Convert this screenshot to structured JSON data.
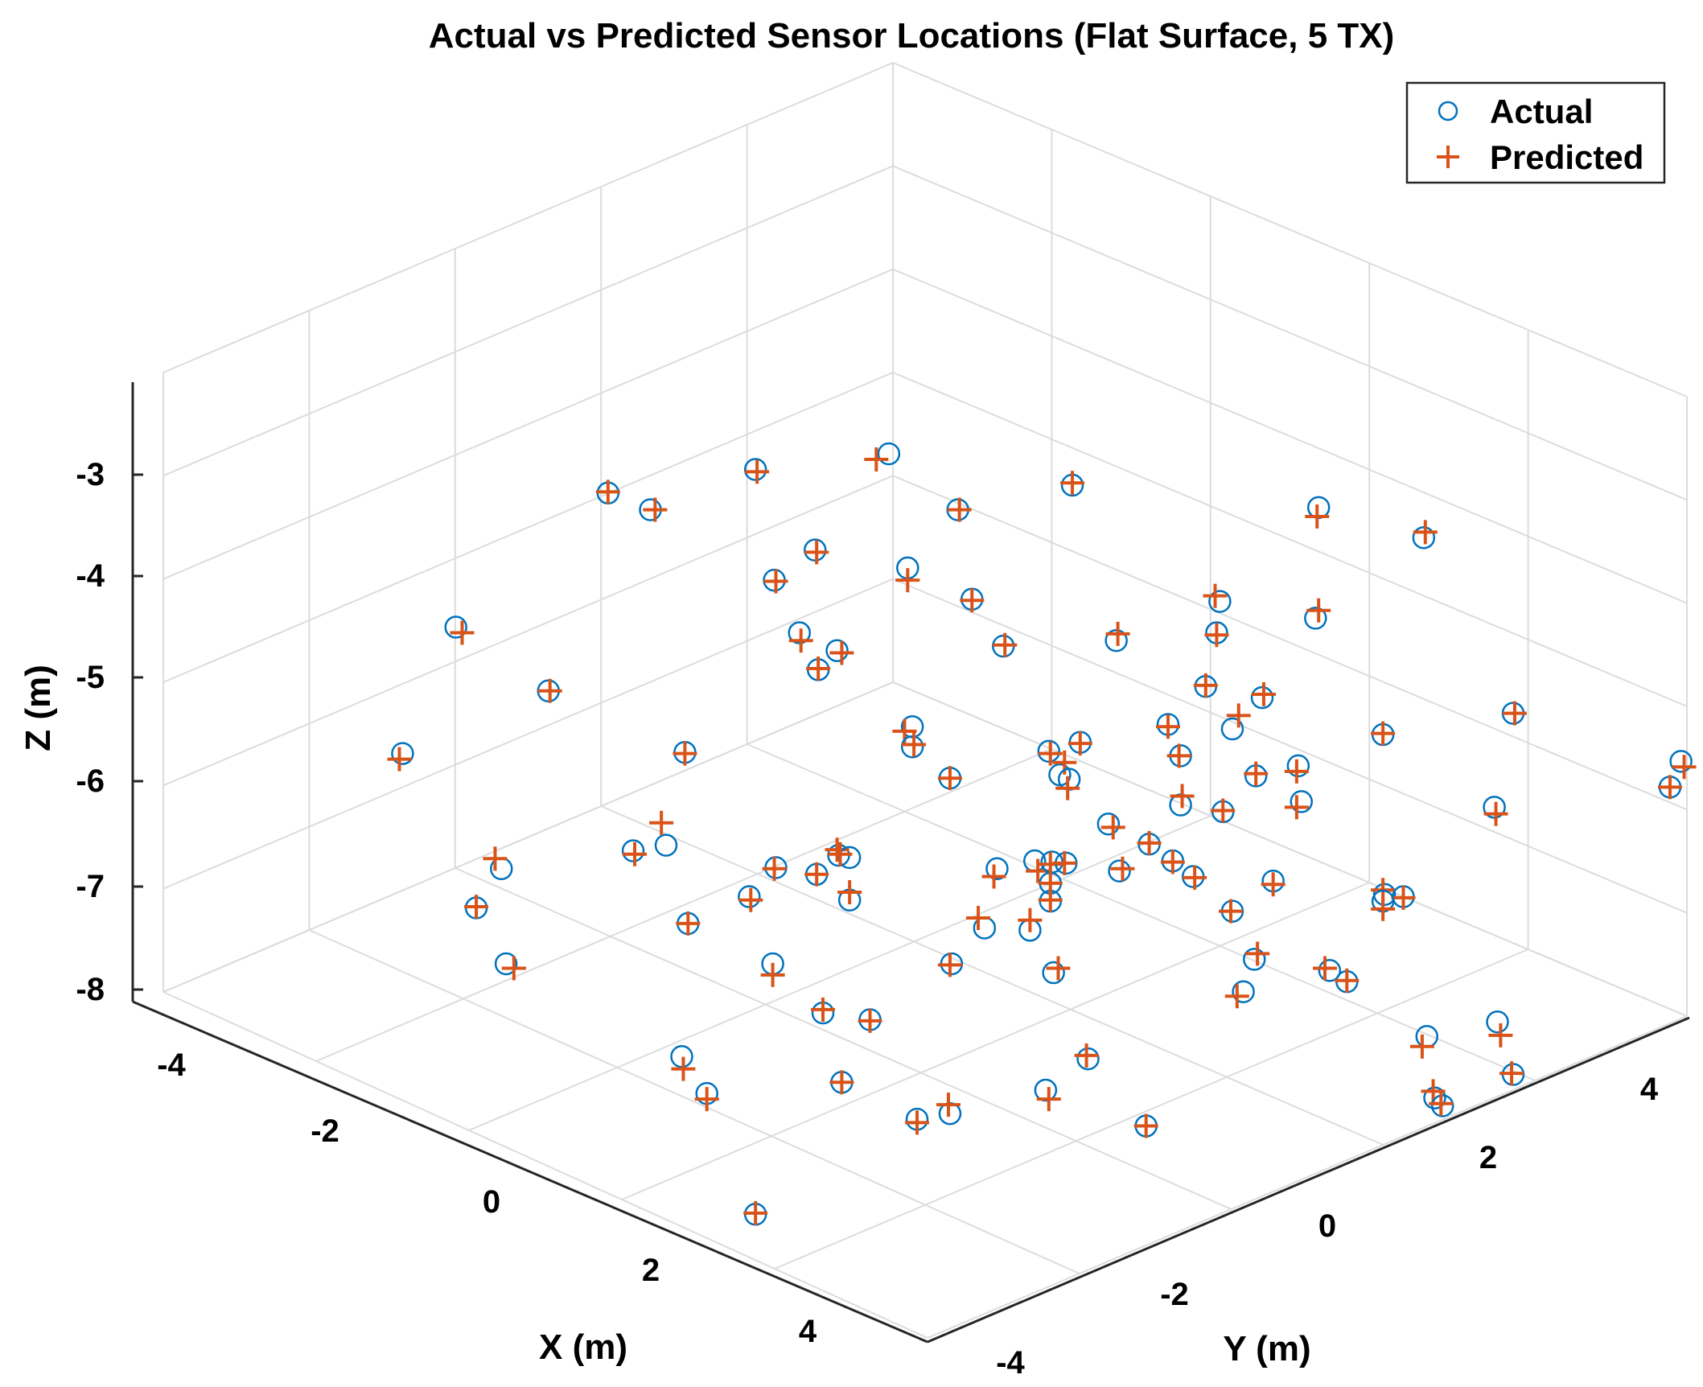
{
  "chart_data": {
    "type": "scatter",
    "title": "Actual vs Predicted Sensor Locations (Flat Surface, 5 TX)",
    "xlabel": "X (m)",
    "ylabel": "Y (m)",
    "zlabel": "Z (m)",
    "x_ticks": [
      "-4",
      "-2",
      "0",
      "2",
      "4"
    ],
    "y_ticks": [
      "-4",
      "-2",
      "0",
      "2",
      "4"
    ],
    "z_ticks": [
      "-3",
      "-4",
      "-5",
      "-6",
      "-7",
      "-8"
    ],
    "xlim": [
      -5,
      5
    ],
    "ylim": [
      -5,
      5
    ],
    "zlim": [
      -8,
      -2
    ],
    "grid": true,
    "legend_position": "top-right",
    "series": [
      {
        "name": "Actual",
        "marker": "circle",
        "color": "#0072BD"
      },
      {
        "name": "Predicted",
        "marker": "plus",
        "color": "#D95319"
      }
    ],
    "points_note": "positions given as projected plot-area values (u: 0-1 across, v: 0-1 down) for Actual (a) and Predicted (p)",
    "points": [
      {
        "a": [
          0.482,
          0.19
        ],
        "p": [
          0.474,
          0.195
        ]
      },
      {
        "a": [
          0.397,
          0.204
        ],
        "p": [
          0.398,
          0.206
        ]
      },
      {
        "a": [
          0.303,
          0.225
        ],
        "p": [
          0.303,
          0.224
        ]
      },
      {
        "a": [
          0.33,
          0.24
        ],
        "p": [
          0.333,
          0.24
        ]
      },
      {
        "a": [
          0.526,
          0.24
        ],
        "p": [
          0.527,
          0.24
        ]
      },
      {
        "a": [
          0.599,
          0.218
        ],
        "p": [
          0.599,
          0.216
        ]
      },
      {
        "a": [
          0.756,
          0.238
        ],
        "p": [
          0.755,
          0.246
        ]
      },
      {
        "a": [
          0.823,
          0.265
        ],
        "p": [
          0.824,
          0.26
        ]
      },
      {
        "a": [
          0.435,
          0.276
        ],
        "p": [
          0.436,
          0.278
        ]
      },
      {
        "a": [
          0.409,
          0.303
        ],
        "p": [
          0.41,
          0.304
        ]
      },
      {
        "a": [
          0.494,
          0.292
        ],
        "p": [
          0.494,
          0.303
        ]
      },
      {
        "a": [
          0.535,
          0.32
        ],
        "p": [
          0.535,
          0.321
        ]
      },
      {
        "a": [
          0.206,
          0.345
        ],
        "p": [
          0.21,
          0.35
        ]
      },
      {
        "a": [
          0.425,
          0.35
        ],
        "p": [
          0.426,
          0.357
        ]
      },
      {
        "a": [
          0.449,
          0.366
        ],
        "p": [
          0.452,
          0.368
        ]
      },
      {
        "a": [
          0.437,
          0.383
        ],
        "p": [
          0.437,
          0.382
        ]
      },
      {
        "a": [
          0.555,
          0.362
        ],
        "p": [
          0.556,
          0.361
        ]
      },
      {
        "a": [
          0.627,
          0.357
        ],
        "p": [
          0.628,
          0.351
        ]
      },
      {
        "a": [
          0.693,
          0.322
        ],
        "p": [
          0.69,
          0.317
        ]
      },
      {
        "a": [
          0.691,
          0.35
        ],
        "p": [
          0.691,
          0.352
        ]
      },
      {
        "a": [
          0.754,
          0.337
        ],
        "p": [
          0.756,
          0.33
        ]
      },
      {
        "a": [
          0.265,
          0.402
        ],
        "p": [
          0.266,
          0.402
        ]
      },
      {
        "a": [
          0.684,
          0.398
        ],
        "p": [
          0.684,
          0.397
        ]
      },
      {
        "a": [
          0.72,
          0.408
        ],
        "p": [
          0.721,
          0.405
        ]
      },
      {
        "a": [
          0.88,
          0.422
        ],
        "p": [
          0.881,
          0.422
        ]
      },
      {
        "a": [
          0.172,
          0.458
        ],
        "p": [
          0.17,
          0.463
        ]
      },
      {
        "a": [
          0.352,
          0.457
        ],
        "p": [
          0.352,
          0.458
        ]
      },
      {
        "a": [
          0.497,
          0.434
        ],
        "p": [
          0.492,
          0.438
        ]
      },
      {
        "a": [
          0.497,
          0.452
        ],
        "p": [
          0.498,
          0.45
        ]
      },
      {
        "a": [
          0.521,
          0.48
        ],
        "p": [
          0.521,
          0.48
        ]
      },
      {
        "a": [
          0.584,
          0.456
        ],
        "p": [
          0.585,
          0.458
        ]
      },
      {
        "a": [
          0.604,
          0.448
        ],
        "p": [
          0.604,
          0.449
        ]
      },
      {
        "a": [
          0.66,
          0.432
        ],
        "p": [
          0.66,
          0.434
        ]
      },
      {
        "a": [
          0.701,
          0.436
        ],
        "p": [
          0.705,
          0.424
        ]
      },
      {
        "a": [
          0.797,
          0.441
        ],
        "p": [
          0.797,
          0.44
        ]
      },
      {
        "a": [
          0.668,
          0.46
        ],
        "p": [
          0.667,
          0.46
        ]
      },
      {
        "a": [
          0.716,
          0.478
        ],
        "p": [
          0.716,
          0.476
        ]
      },
      {
        "a": [
          0.743,
          0.469
        ],
        "p": [
          0.742,
          0.474
        ]
      },
      {
        "a": [
          0.591,
          0.477
        ],
        "p": [
          0.594,
          0.466
        ]
      },
      {
        "a": [
          0.597,
          0.481
        ],
        "p": [
          0.596,
          0.489
        ]
      },
      {
        "a": [
          0.668,
          0.504
        ],
        "p": [
          0.669,
          0.496
        ]
      },
      {
        "a": [
          0.695,
          0.51
        ],
        "p": [
          0.695,
          0.509
        ]
      },
      {
        "a": [
          0.745,
          0.501
        ],
        "p": [
          0.742,
          0.506
        ]
      },
      {
        "a": [
          0.868,
          0.506
        ],
        "p": [
          0.869,
          0.512
        ]
      },
      {
        "a": [
          0.987,
          0.465
        ],
        "p": [
          0.989,
          0.47
        ]
      },
      {
        "a": [
          0.98,
          0.488
        ],
        "p": [
          0.98,
          0.488
        ]
      },
      {
        "a": [
          0.34,
          0.54
        ],
        "p": [
          0.337,
          0.52
        ]
      },
      {
        "a": [
          0.319,
          0.545
        ],
        "p": [
          0.32,
          0.548
        ]
      },
      {
        "a": [
          0.235,
          0.561
        ],
        "p": [
          0.231,
          0.552
        ]
      },
      {
        "a": [
          0.622,
          0.521
        ],
        "p": [
          0.625,
          0.524
        ]
      },
      {
        "a": [
          0.648,
          0.539
        ],
        "p": [
          0.648,
          0.538
        ]
      },
      {
        "a": [
          0.45,
          0.549
        ],
        "p": [
          0.449,
          0.544
        ]
      },
      {
        "a": [
          0.457,
          0.551
        ],
        "p": [
          0.451,
          0.548
        ]
      },
      {
        "a": [
          0.41,
          0.56
        ],
        "p": [
          0.409,
          0.561
        ]
      },
      {
        "a": [
          0.436,
          0.566
        ],
        "p": [
          0.436,
          0.566
        ]
      },
      {
        "a": [
          0.551,
          0.561
        ],
        "p": [
          0.549,
          0.568
        ]
      },
      {
        "a": [
          0.575,
          0.554
        ],
        "p": [
          0.577,
          0.563
        ]
      },
      {
        "a": [
          0.586,
          0.555
        ],
        "p": [
          0.585,
          0.557
        ]
      },
      {
        "a": [
          0.595,
          0.556
        ],
        "p": [
          0.594,
          0.556
        ]
      },
      {
        "a": [
          0.629,
          0.563
        ],
        "p": [
          0.631,
          0.561
        ]
      },
      {
        "a": [
          0.663,
          0.554
        ],
        "p": [
          0.663,
          0.555
        ]
      },
      {
        "a": [
          0.676,
          0.568
        ],
        "p": [
          0.677,
          0.569
        ]
      },
      {
        "a": [
          0.585,
          0.574
        ],
        "p": [
          0.585,
          0.574
        ]
      },
      {
        "a": [
          0.585,
          0.59
        ],
        "p": [
          0.585,
          0.589
        ]
      },
      {
        "a": [
          0.727,
          0.572
        ],
        "p": [
          0.727,
          0.575
        ]
      },
      {
        "a": [
          0.798,
          0.584
        ],
        "p": [
          0.797,
          0.58
        ]
      },
      {
        "a": [
          0.81,
          0.586
        ],
        "p": [
          0.81,
          0.587
        ]
      },
      {
        "a": [
          0.219,
          0.596
        ],
        "p": [
          0.219,
          0.595
        ]
      },
      {
        "a": [
          0.393,
          0.586
        ],
        "p": [
          0.394,
          0.589
        ]
      },
      {
        "a": [
          0.457,
          0.589
        ],
        "p": [
          0.457,
          0.582
        ]
      },
      {
        "a": [
          0.354,
          0.61
        ],
        "p": [
          0.354,
          0.61
        ]
      },
      {
        "a": [
          0.543,
          0.614
        ],
        "p": [
          0.539,
          0.605
        ]
      },
      {
        "a": [
          0.572,
          0.616
        ],
        "p": [
          0.572,
          0.607
        ]
      },
      {
        "a": [
          0.701,
          0.599
        ],
        "p": [
          0.7,
          0.599
        ]
      },
      {
        "a": [
          0.797,
          0.59
        ],
        "p": [
          0.797,
          0.597
        ]
      },
      {
        "a": [
          0.238,
          0.646
        ],
        "p": [
          0.243,
          0.65
        ]
      },
      {
        "a": [
          0.408,
          0.646
        ],
        "p": [
          0.408,
          0.656
        ]
      },
      {
        "a": [
          0.522,
          0.646
        ],
        "p": [
          0.521,
          0.647
        ]
      },
      {
        "a": [
          0.587,
          0.654
        ],
        "p": [
          0.59,
          0.65
        ]
      },
      {
        "a": [
          0.715,
          0.642
        ],
        "p": [
          0.717,
          0.637
        ]
      },
      {
        "a": [
          0.763,
          0.652
        ],
        "p": [
          0.76,
          0.65
        ]
      },
      {
        "a": [
          0.774,
          0.662
        ],
        "p": [
          0.774,
          0.661
        ]
      },
      {
        "a": [
          0.708,
          0.671
        ],
        "p": [
          0.704,
          0.675
        ]
      },
      {
        "a": [
          0.44,
          0.69
        ],
        "p": [
          0.44,
          0.687
        ]
      },
      {
        "a": [
          0.47,
          0.696
        ],
        "p": [
          0.47,
          0.697
        ]
      },
      {
        "a": [
          0.87,
          0.698
        ],
        "p": [
          0.872,
          0.71
        ]
      },
      {
        "a": [
          0.825,
          0.711
        ],
        "p": [
          0.822,
          0.72
        ]
      },
      {
        "a": [
          0.35,
          0.729
        ],
        "p": [
          0.351,
          0.74
        ]
      },
      {
        "a": [
          0.609,
          0.731
        ],
        "p": [
          0.608,
          0.728
        ]
      },
      {
        "a": [
          0.366,
          0.762
        ],
        "p": [
          0.366,
          0.767
        ]
      },
      {
        "a": [
          0.452,
          0.752
        ],
        "p": [
          0.452,
          0.752
        ]
      },
      {
        "a": [
          0.582,
          0.759
        ],
        "p": [
          0.584,
          0.767
        ]
      },
      {
        "a": [
          0.83,
          0.766
        ],
        "p": [
          0.829,
          0.76
        ]
      },
      {
        "a": [
          0.835,
          0.773
        ],
        "p": [
          0.834,
          0.771
        ]
      },
      {
        "a": [
          0.88,
          0.745
        ],
        "p": [
          0.879,
          0.744
        ]
      },
      {
        "a": [
          0.521,
          0.78
        ],
        "p": [
          0.52,
          0.772
        ]
      },
      {
        "a": [
          0.5,
          0.785
        ],
        "p": [
          0.5,
          0.788
        ]
      },
      {
        "a": [
          0.646,
          0.791
        ],
        "p": [
          0.646,
          0.791
        ]
      },
      {
        "a": [
          0.397,
          0.87
        ],
        "p": [
          0.397,
          0.869
        ]
      }
    ]
  }
}
